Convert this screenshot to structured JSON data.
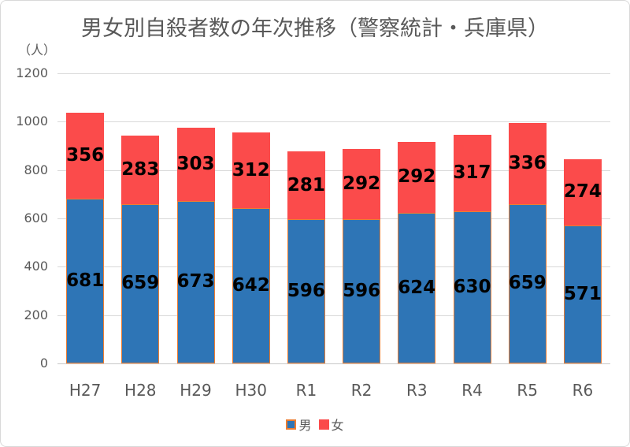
{
  "window": {
    "background": "#FFFFFF",
    "border_color": "#D9D9D9"
  },
  "styles": {
    "grid_color": "#D9D9D9",
    "axis_line_color": "#C6C6C6",
    "axis_text_color": "#595959",
    "title_color": "#595959",
    "data_label_color": "#000000"
  },
  "chart_data": {
    "type": "bar",
    "stacked": true,
    "title": "男女別自殺者数の年次推移（警察統計・兵庫県）",
    "ylabel": "（人）",
    "xlabel": "",
    "ylim": [
      0,
      1200
    ],
    "yticks": [
      0,
      200,
      400,
      600,
      800,
      1000,
      1200
    ],
    "grid": true,
    "data_labels": true,
    "legend_position": "bottom",
    "categories": [
      "H27",
      "H28",
      "H29",
      "H30",
      "R1",
      "R2",
      "R3",
      "R4",
      "R5",
      "R6"
    ],
    "series": [
      {
        "name": "男",
        "values": [
          681,
          659,
          673,
          642,
          596,
          596,
          624,
          630,
          659,
          571
        ],
        "color": "#2E75B6",
        "border_color": "#ED7D31"
      },
      {
        "name": "女",
        "values": [
          356,
          283,
          303,
          312,
          281,
          292,
          292,
          317,
          336,
          274
        ],
        "color": "#FB4B4B",
        "border_color": ""
      }
    ]
  },
  "legend": {
    "items": [
      {
        "label": "男",
        "color": "#2E75B6",
        "border": "#ED7D31"
      },
      {
        "label": "女",
        "color": "#FB4B4B",
        "border": ""
      }
    ]
  }
}
